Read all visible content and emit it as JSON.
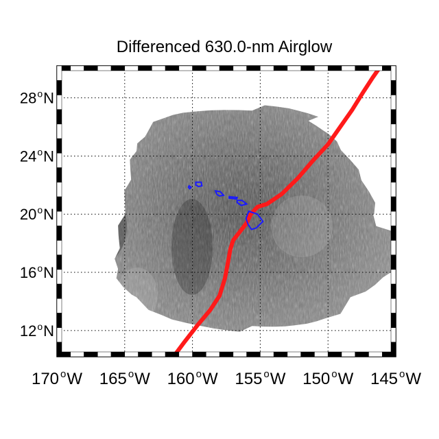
{
  "figure": {
    "title": "Differenced 630.0-nm Airglow"
  },
  "map": {
    "lon_range": [
      -170,
      -145
    ],
    "lat_range": [
      10.2,
      30.2
    ],
    "grid": true,
    "x_ticks": [
      {
        "value": -170,
        "label": "170",
        "unit": "W"
      },
      {
        "value": -165,
        "label": "165",
        "unit": "W"
      },
      {
        "value": -160,
        "label": "160",
        "unit": "W"
      },
      {
        "value": -155,
        "label": "155",
        "unit": "W"
      },
      {
        "value": -150,
        "label": "150",
        "unit": "W"
      },
      {
        "value": -145,
        "label": "145",
        "unit": "W"
      }
    ],
    "y_ticks": [
      {
        "value": 12,
        "label": "12",
        "unit": "N"
      },
      {
        "value": 16,
        "label": "16",
        "unit": "N"
      },
      {
        "value": 20,
        "label": "20",
        "unit": "N"
      },
      {
        "value": 24,
        "label": "24",
        "unit": "N"
      },
      {
        "value": 28,
        "label": "28",
        "unit": "N"
      }
    ],
    "colors": {
      "airglow_dark": "#3a3a3a",
      "airglow_light": "#b4b4b4",
      "track": "#ff1a1a",
      "coastline": "#1a1aff",
      "frame": "#000000"
    },
    "track": [
      [
        -161.4,
        10.2
      ],
      [
        -160.6,
        11.2
      ],
      [
        -159.6,
        12.4
      ],
      [
        -158.7,
        13.4
      ],
      [
        -158.0,
        14.4
      ],
      [
        -157.6,
        15.6
      ],
      [
        -157.4,
        16.6
      ],
      [
        -157.2,
        17.6
      ],
      [
        -157.0,
        18.2
      ],
      [
        -156.5,
        18.8
      ],
      [
        -156.0,
        19.4
      ],
      [
        -155.7,
        20.0
      ],
      [
        -155.2,
        20.5
      ],
      [
        -154.5,
        20.7
      ],
      [
        -153.4,
        21.4
      ],
      [
        -152.2,
        22.5
      ],
      [
        -151.1,
        23.7
      ],
      [
        -150.0,
        24.8
      ],
      [
        -149.1,
        26.0
      ],
      [
        -148.2,
        27.2
      ],
      [
        -147.4,
        28.4
      ],
      [
        -146.7,
        29.4
      ],
      [
        -146.1,
        30.2
      ]
    ],
    "islands": [
      {
        "name": "Niihau",
        "outline": [
          [
            -160.25,
            21.95
          ],
          [
            -160.1,
            21.85
          ],
          [
            -160.2,
            21.75
          ],
          [
            -160.3,
            21.85
          ]
        ]
      },
      {
        "name": "Kauai",
        "outline": [
          [
            -159.75,
            22.2
          ],
          [
            -159.35,
            22.2
          ],
          [
            -159.3,
            21.95
          ],
          [
            -159.55,
            21.9
          ],
          [
            -159.75,
            22.0
          ]
        ]
      },
      {
        "name": "Oahu",
        "outline": [
          [
            -158.3,
            21.6
          ],
          [
            -157.95,
            21.55
          ],
          [
            -157.7,
            21.3
          ],
          [
            -158.0,
            21.25
          ],
          [
            -158.2,
            21.35
          ]
        ]
      },
      {
        "name": "Molokai",
        "outline": [
          [
            -157.3,
            21.2
          ],
          [
            -156.7,
            21.15
          ],
          [
            -156.75,
            21.05
          ],
          [
            -157.3,
            21.1
          ]
        ]
      },
      {
        "name": "Maui",
        "outline": [
          [
            -156.7,
            20.95
          ],
          [
            -156.35,
            20.95
          ],
          [
            -156.0,
            20.7
          ],
          [
            -156.4,
            20.6
          ],
          [
            -156.7,
            20.8
          ]
        ]
      },
      {
        "name": "Hawaii",
        "outline": [
          [
            -155.85,
            20.2
          ],
          [
            -155.2,
            20.0
          ],
          [
            -154.8,
            19.5
          ],
          [
            -155.3,
            19.05
          ],
          [
            -155.65,
            18.95
          ],
          [
            -155.9,
            19.3
          ],
          [
            -156.05,
            19.7
          ]
        ]
      }
    ]
  }
}
